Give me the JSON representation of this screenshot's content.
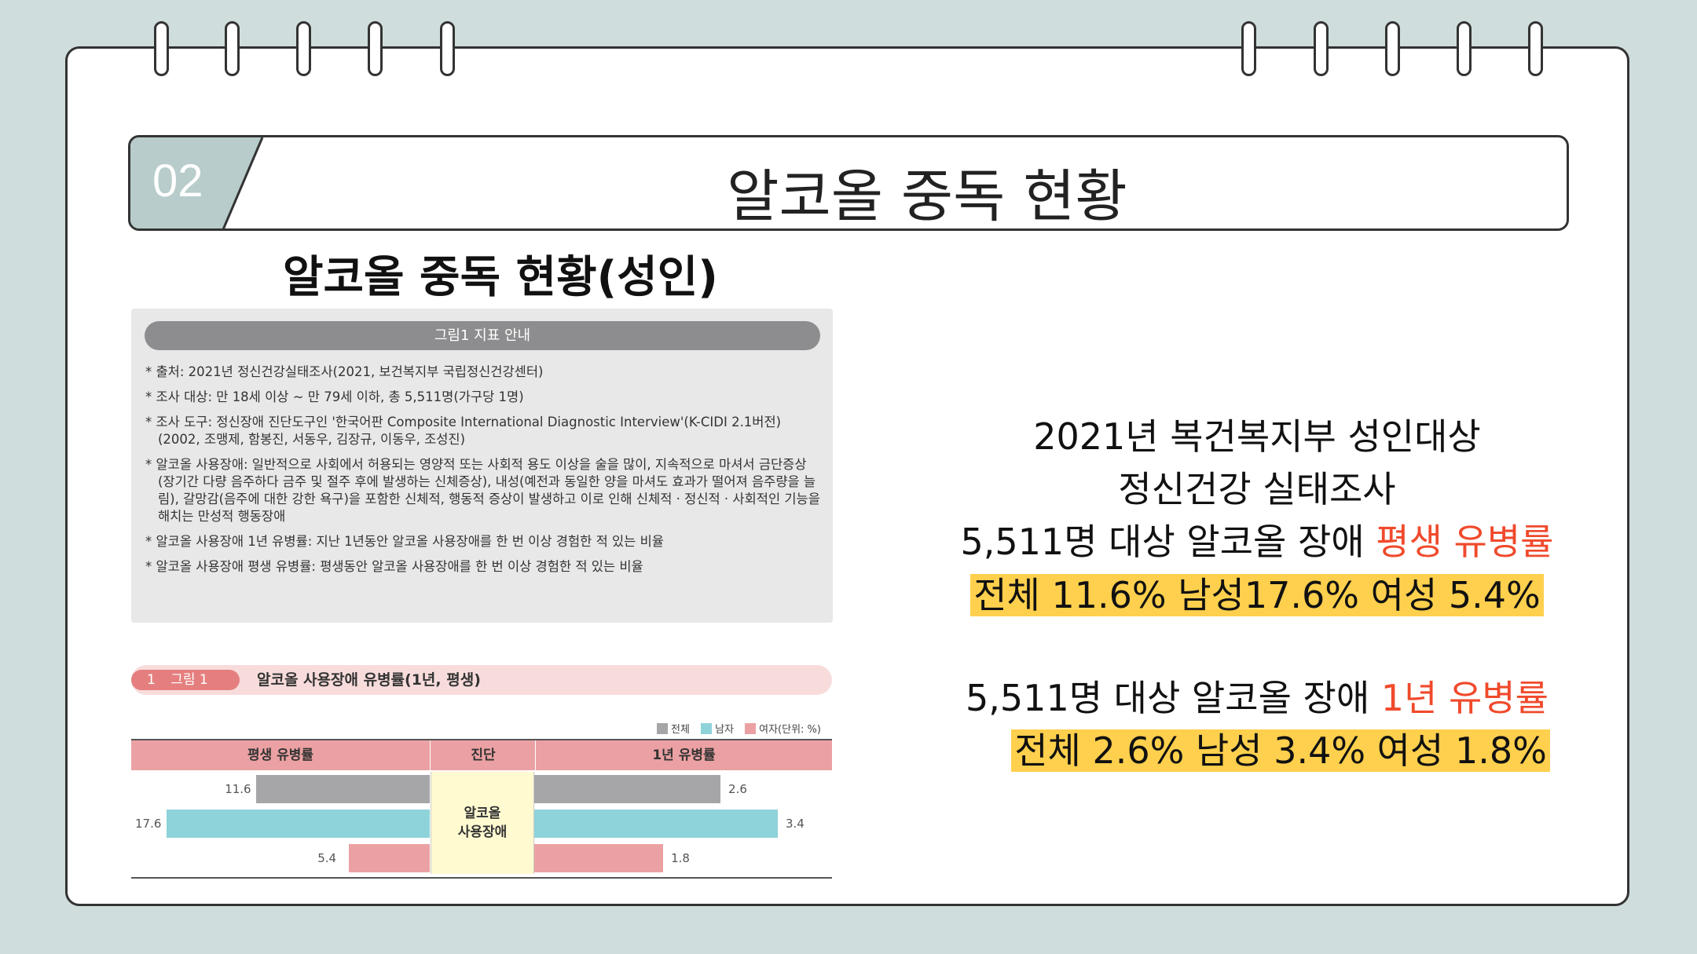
{
  "header": {
    "badge": "02",
    "title": "알코올 중독 현황"
  },
  "subtitle": "알코올 중독 현황(성인)",
  "info_box": {
    "heading": "그림1 지표 안내",
    "lines": [
      "* 출처: 2021년 정신건강실태조사(2021, 보건복지부 국립정신건강센터)",
      "* 조사 대상: 만 18세 이상 ~ 만 79세 이하, 총 5,511명(가구당 1명)",
      "* 조사 도구: 정신장애 진단도구인 '한국어판 Composite International Diagnostic Interview'(K-CIDI 2.1버전)(2002, 조맹제, 함봉진, 서동우, 김장규, 이동우, 조성진)",
      "* 알코올 사용장애: 일반적으로 사회에서 허용되는 영양적 또는 사회적 용도 이상을 술을 많이, 지속적으로 마셔서 금단증상(장기간 다량 음주하다 금주 및 절주 후에 발생하는 신체증상), 내성(예전과 동일한 양을 마셔도 효과가 떨어져 음주량을 늘림), 갈망감(음주에 대한 강한 욕구)을 포함한 신체적, 행동적 증상이 발생하고 이로 인해 신체적 · 정신적 · 사회적인 기능을 해치는 만성적 행동장애",
      "* 알코올 사용장애 1년 유병률: 지난 1년동안 알코올 사용장애를 한 번 이상 경험한 적 있는 비율",
      "* 알코올 사용장애 평생 유병률: 평생동안 알코올 사용장애를 한 번 이상 경험한 적 있는 비율"
    ]
  },
  "chart_header": {
    "num": "1",
    "label": "그림 1",
    "title": "알코올 사용장애 유병률(1년, 평생)"
  },
  "chart_data": {
    "type": "bar",
    "legend": [
      {
        "name": "전체",
        "color": "#a6a6a8"
      },
      {
        "name": "남자",
        "color": "#8ed3d9"
      },
      {
        "name": "여자(단위: %)",
        "color": "#eba1a3"
      }
    ],
    "columns": {
      "left": "평생 유병률",
      "center": "진단",
      "right": "1년 유병률"
    },
    "center_label": "알코올\n사용장애",
    "lifetime": [
      11.6,
      17.6,
      5.4
    ],
    "lifetime_labels": [
      "11.6",
      "17.6",
      "5.4"
    ],
    "one_year": [
      2.6,
      3.4,
      1.8
    ],
    "one_year_labels": [
      "2.6",
      "3.4",
      "1.8"
    ]
  },
  "right_panel": {
    "line1": "2021년 복건복지부 성인대상",
    "line2": "정신건강 실태조사",
    "line3_prefix": "5,511명 대상 알코올 장애 ",
    "line3_red": "평생 유병률",
    "line4": "전체 11.6% 남성17.6% 여성 5.4%",
    "line5_prefix": "5,511명 대상 알코올 장애 ",
    "line5_red": "1년 유병률",
    "line6": "전체 2.6% 남성 3.4% 여성 1.8%"
  }
}
